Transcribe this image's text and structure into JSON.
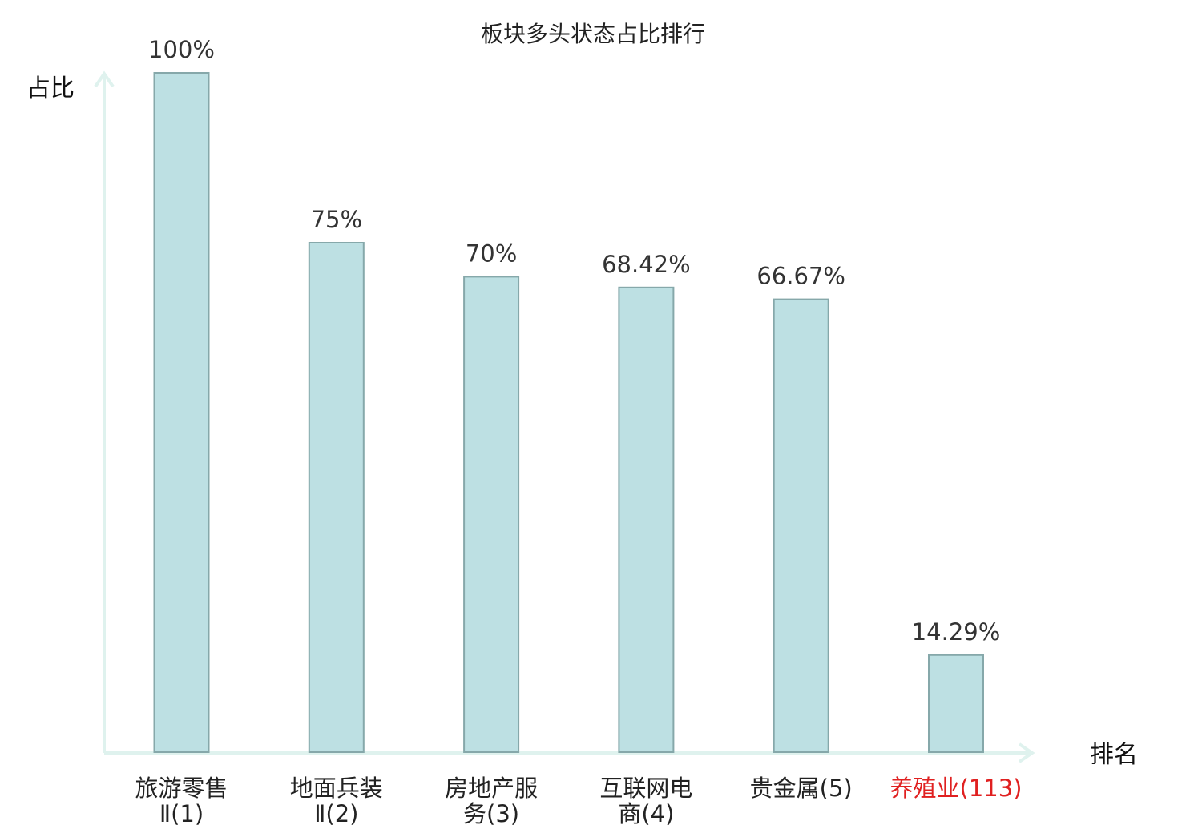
{
  "chart_data": {
    "type": "bar",
    "title": "板块多头状态占比排行",
    "ylabel": "占比",
    "xlabel": "排名",
    "ylim": [
      0,
      100
    ],
    "grid": false,
    "legend": "none",
    "categories": [
      {
        "line1": "旅游零售",
        "line2": "Ⅱ(1)",
        "highlight": false
      },
      {
        "line1": "地面兵装",
        "line2": "Ⅱ(2)",
        "highlight": false
      },
      {
        "line1": "房地产服",
        "line2": "务(3)",
        "highlight": false
      },
      {
        "line1": "互联网电",
        "line2": "商(4)",
        "highlight": false
      },
      {
        "line1": "贵金属(5)",
        "line2": "",
        "highlight": false
      },
      {
        "line1": "养殖业(113)",
        "line2": "",
        "highlight": true
      }
    ],
    "values": [
      100,
      75,
      70,
      68.42,
      66.67,
      14.29
    ],
    "value_labels": [
      "100%",
      "75%",
      "70%",
      "68.42%",
      "66.67%",
      "14.29%"
    ],
    "colors": {
      "bar_fill": "#bde0e3",
      "bar_stroke": "#86a8aa",
      "axis": "#dff2ee",
      "highlight_label": "#e02020",
      "normal_label": "#222222"
    }
  }
}
